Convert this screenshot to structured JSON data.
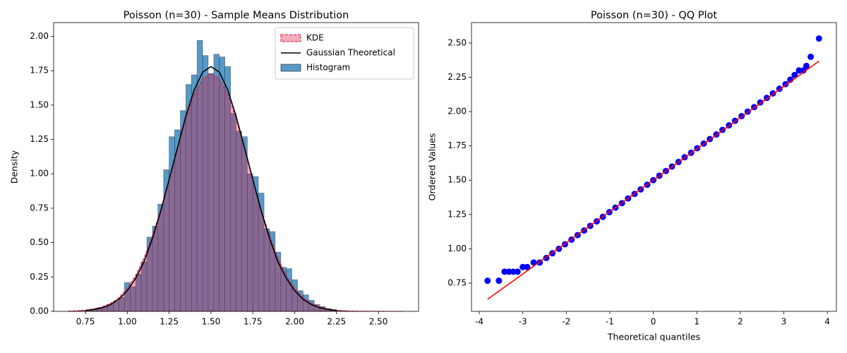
{
  "chart_data": [
    {
      "type": "histogram",
      "title": "Poisson (n=30) - Sample Means Distribution",
      "ylabel": "Density",
      "xlim": [
        0.56,
        2.74
      ],
      "ylim": [
        0,
        2.1
      ],
      "xticks": [
        0.75,
        {
          "value": 1,
          "label": "1.00"
        },
        1.25,
        {
          "value": 1.5,
          "label": "1.50"
        },
        1.75,
        {
          "value": 2,
          "label": "2.00"
        },
        2.25,
        {
          "value": 2.5,
          "label": "2.50"
        }
      ],
      "yticks": [
        {
          "value": 0,
          "label": "0.00"
        },
        0.25,
        {
          "value": 0.5,
          "label": "0.50"
        },
        0.75,
        {
          "value": 1,
          "label": "1.00"
        },
        1.25,
        {
          "value": 1.5,
          "label": "1.50"
        },
        1.75,
        {
          "value": 2,
          "label": "2.00"
        }
      ],
      "legend": "upper right",
      "series": [
        {
          "name": "KDE",
          "type": "area",
          "color": "#dc143c",
          "x": [
            0.65,
            0.7,
            0.75,
            0.8,
            0.85,
            0.9,
            0.95,
            1.0,
            1.05,
            1.1,
            1.15,
            1.2,
            1.25,
            1.3,
            1.35,
            1.4,
            1.45,
            1.5,
            1.55,
            1.6,
            1.65,
            1.7,
            1.75,
            1.8,
            1.85,
            1.9,
            1.95,
            2.0,
            2.05,
            2.1,
            2.15,
            2.2,
            2.25,
            2.3,
            2.35,
            2.4,
            2.45,
            2.5,
            2.55,
            2.6,
            2.65
          ],
          "values": [
            0.002,
            0.004,
            0.009,
            0.018,
            0.033,
            0.059,
            0.1,
            0.17,
            0.26,
            0.39,
            0.55,
            0.74,
            0.96,
            1.19,
            1.4,
            1.58,
            1.69,
            1.73,
            1.69,
            1.58,
            1.4,
            1.19,
            0.96,
            0.74,
            0.55,
            0.39,
            0.26,
            0.17,
            0.1,
            0.059,
            0.033,
            0.018,
            0.009,
            0.004,
            0.002,
            0.001,
            0.001,
            0.0005,
            0.0003,
            0.0002,
            0.0001
          ]
        },
        {
          "name": "Gaussian Theoretical",
          "type": "line",
          "color": "#000000",
          "x": [
            0.75,
            0.8,
            0.85,
            0.9,
            0.95,
            1.0,
            1.05,
            1.1,
            1.15,
            1.2,
            1.25,
            1.3,
            1.35,
            1.4,
            1.45,
            1.5,
            1.55,
            1.6,
            1.65,
            1.7,
            1.75,
            1.8,
            1.85,
            1.9,
            1.95,
            2.0,
            2.05,
            2.1,
            2.15,
            2.2,
            2.25
          ],
          "values": [
            0.0066,
            0.014,
            0.026,
            0.049,
            0.088,
            0.15,
            0.24,
            0.36,
            0.53,
            0.73,
            0.96,
            1.19,
            1.42,
            1.61,
            1.74,
            1.78,
            1.74,
            1.61,
            1.42,
            1.19,
            0.96,
            0.73,
            0.53,
            0.36,
            0.24,
            0.15,
            0.088,
            0.049,
            0.026,
            0.014,
            0.0066
          ]
        },
        {
          "name": "Histogram",
          "type": "histogram",
          "color": "#1f77b4",
          "bins": [
            0.65,
            0.683,
            0.717,
            0.75,
            0.783,
            0.817,
            0.85,
            0.883,
            0.917,
            0.95,
            0.983,
            1.017,
            1.05,
            1.083,
            1.117,
            1.15,
            1.183,
            1.217,
            1.25,
            1.283,
            1.317,
            1.35,
            1.383,
            1.417,
            1.45,
            1.483,
            1.517,
            1.55,
            1.583,
            1.617,
            1.65,
            1.683,
            1.717,
            1.75,
            1.783,
            1.817,
            1.85,
            1.883,
            1.917,
            1.95,
            1.983,
            2.017,
            2.05,
            2.083,
            2.117,
            2.15,
            2.183,
            2.217,
            2.25,
            2.283,
            2.317,
            2.35,
            2.383,
            2.417,
            2.45,
            2.483,
            2.517,
            2.55,
            2.583,
            2.617,
            2.65
          ],
          "values": [
            0.002,
            0.003,
            0.006,
            0.01,
            0.015,
            0.025,
            0.035,
            0.05,
            0.07,
            0.1,
            0.21,
            0.18,
            0.27,
            0.36,
            0.54,
            0.62,
            0.78,
            1.03,
            1.27,
            1.32,
            1.46,
            1.65,
            1.72,
            1.97,
            1.86,
            1.73,
            1.87,
            1.85,
            1.78,
            1.44,
            1.31,
            1.27,
            1.0,
            0.98,
            0.86,
            0.6,
            0.58,
            0.43,
            0.32,
            0.31,
            0.23,
            0.15,
            0.12,
            0.08,
            0.05,
            0.035,
            0.02,
            0.012,
            0.008,
            0.005,
            0.003,
            0.002,
            0.001,
            0.001,
            0.001,
            0,
            0,
            0,
            0,
            0.001
          ]
        }
      ]
    },
    {
      "type": "scatter",
      "title": "Poisson (n=30) - QQ Plot",
      "xlabel": "Theoretical quantiles",
      "ylabel": "Ordered Values",
      "xlim": [
        -4.18,
        4.21
      ],
      "ylim": [
        0.544,
        2.649
      ],
      "xticks": [
        -4,
        -3,
        -2,
        -1,
        0,
        1,
        2,
        3,
        4
      ],
      "yticks": [
        0.75,
        {
          "value": 1,
          "label": "1.00"
        },
        1.25,
        {
          "value": 1.5,
          "label": "1.50"
        },
        1.75,
        {
          "value": 2,
          "label": "2.00"
        },
        2.25,
        {
          "value": 2.5,
          "label": "2.50"
        }
      ],
      "series": [
        {
          "type": "scatter",
          "color": "#0000ff",
          "x": [
            -3.81,
            -3.55,
            -3.42,
            -3.32,
            -3.22,
            -3.12,
            -3.0,
            -2.9,
            -2.75,
            -2.61,
            -2.46,
            -2.32,
            -2.17,
            -2.03,
            -1.88,
            -1.74,
            -1.59,
            -1.45,
            -1.3,
            -1.16,
            -1.01,
            -0.87,
            -0.72,
            -0.58,
            -0.43,
            -0.29,
            -0.14,
            0,
            0.14,
            0.29,
            0.43,
            0.58,
            0.72,
            0.87,
            1.01,
            1.16,
            1.3,
            1.45,
            1.59,
            1.74,
            1.88,
            2.03,
            2.17,
            2.32,
            2.46,
            2.61,
            2.75,
            2.9,
            3.04,
            3.15,
            3.25,
            3.35,
            3.45,
            3.52,
            3.62,
            3.81
          ],
          "values": [
            0.767,
            0.767,
            0.833,
            0.833,
            0.833,
            0.833,
            0.867,
            0.867,
            0.9,
            0.9,
            0.933,
            0.967,
            1.0,
            1.033,
            1.067,
            1.1,
            1.133,
            1.167,
            1.2,
            1.233,
            1.267,
            1.3,
            1.333,
            1.367,
            1.4,
            1.433,
            1.467,
            1.5,
            1.533,
            1.567,
            1.6,
            1.633,
            1.667,
            1.7,
            1.733,
            1.767,
            1.8,
            1.833,
            1.867,
            1.9,
            1.933,
            1.967,
            2.0,
            2.033,
            2.067,
            2.1,
            2.133,
            2.167,
            2.2,
            2.233,
            2.267,
            2.3,
            2.3,
            2.333,
            2.4,
            2.533
          ]
        },
        {
          "type": "line",
          "color": "#ff0000",
          "x": [
            -3.81,
            3.81
          ],
          "values": [
            0.632,
            2.368
          ]
        }
      ]
    }
  ]
}
